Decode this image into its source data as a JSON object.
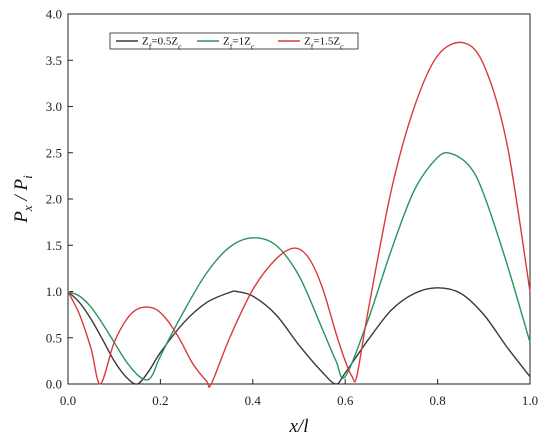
{
  "chart_data": {
    "type": "line",
    "xlabel": {
      "base": "x/l"
    },
    "ylabel": {
      "p1": "P",
      "s1": "x",
      "sep": " / ",
      "p2": "P",
      "s2": "i"
    },
    "xlim": [
      0.0,
      1.0
    ],
    "ylim": [
      0.0,
      4.0
    ],
    "xticks": [
      0.0,
      0.2,
      0.4,
      0.6,
      0.8,
      1.0
    ],
    "xtick_labels": [
      "0.0",
      "0.2",
      "0.4",
      "0.6",
      "0.8",
      "1.0"
    ],
    "yticks": [
      0.0,
      0.5,
      1.0,
      1.5,
      2.0,
      2.5,
      3.0,
      3.5,
      4.0
    ],
    "ytick_labels": [
      "0.0",
      "0.5",
      "1.0",
      "1.5",
      "2.0",
      "2.5",
      "3.0",
      "3.5",
      "4.0"
    ],
    "grid": false,
    "legend": "top-left",
    "series": [
      {
        "name": "Zf=0.5Zc",
        "label_parts": {
          "a": "Z",
          "a_sub": "f",
          "b": "=0.5Z",
          "b_sub": "c"
        },
        "color": "#3a3a3a",
        "x": [
          0.0,
          0.025,
          0.05,
          0.075,
          0.1,
          0.125,
          0.15,
          0.175,
          0.2,
          0.25,
          0.3,
          0.35,
          0.365,
          0.4,
          0.45,
          0.5,
          0.55,
          0.58,
          0.6,
          0.65,
          0.7,
          0.75,
          0.8,
          0.85,
          0.9,
          0.95,
          1.0
        ],
        "y": [
          1.0,
          0.88,
          0.7,
          0.48,
          0.25,
          0.08,
          0.0,
          0.14,
          0.34,
          0.66,
          0.88,
          0.99,
          1.0,
          0.95,
          0.75,
          0.42,
          0.13,
          0.0,
          0.12,
          0.48,
          0.8,
          0.98,
          1.04,
          0.98,
          0.75,
          0.4,
          0.08
        ]
      },
      {
        "name": "Zf=1Zc",
        "label_parts": {
          "a": "Z",
          "a_sub": "f",
          "b": "=1Z",
          "b_sub": "c"
        },
        "color": "#2a9461",
        "x": [
          0.0,
          0.025,
          0.05,
          0.075,
          0.1,
          0.125,
          0.15,
          0.165,
          0.175,
          0.185,
          0.2,
          0.25,
          0.3,
          0.35,
          0.4,
          0.45,
          0.5,
          0.55,
          0.58,
          0.6,
          0.65,
          0.7,
          0.75,
          0.8,
          0.83,
          0.87,
          0.9,
          0.95,
          1.0
        ],
        "y": [
          1.0,
          0.95,
          0.83,
          0.65,
          0.45,
          0.25,
          0.1,
          0.05,
          0.05,
          0.12,
          0.3,
          0.78,
          1.2,
          1.48,
          1.58,
          1.5,
          1.17,
          0.6,
          0.25,
          0.08,
          0.7,
          1.45,
          2.1,
          2.45,
          2.49,
          2.35,
          2.05,
          1.3,
          0.45
        ]
      },
      {
        "name": "Zf=1.5Zc",
        "label_parts": {
          "a": "Z",
          "a_sub": "f",
          "b": "=1.5Z",
          "b_sub": "c"
        },
        "color": "#d93a3a",
        "x": [
          0.0,
          0.025,
          0.05,
          0.07,
          0.1,
          0.13,
          0.155,
          0.185,
          0.21,
          0.24,
          0.27,
          0.3,
          0.31,
          0.35,
          0.4,
          0.45,
          0.49,
          0.52,
          0.55,
          0.58,
          0.6,
          0.615,
          0.625,
          0.65,
          0.7,
          0.75,
          0.8,
          0.855,
          0.9,
          0.95,
          1.0
        ],
        "y": [
          1.0,
          0.75,
          0.38,
          0.0,
          0.45,
          0.72,
          0.82,
          0.82,
          0.72,
          0.5,
          0.22,
          0.03,
          0.0,
          0.5,
          1.02,
          1.35,
          1.47,
          1.37,
          1.05,
          0.55,
          0.25,
          0.08,
          0.08,
          0.8,
          2.1,
          3.0,
          3.55,
          3.69,
          3.45,
          2.6,
          1.0
        ]
      }
    ]
  }
}
